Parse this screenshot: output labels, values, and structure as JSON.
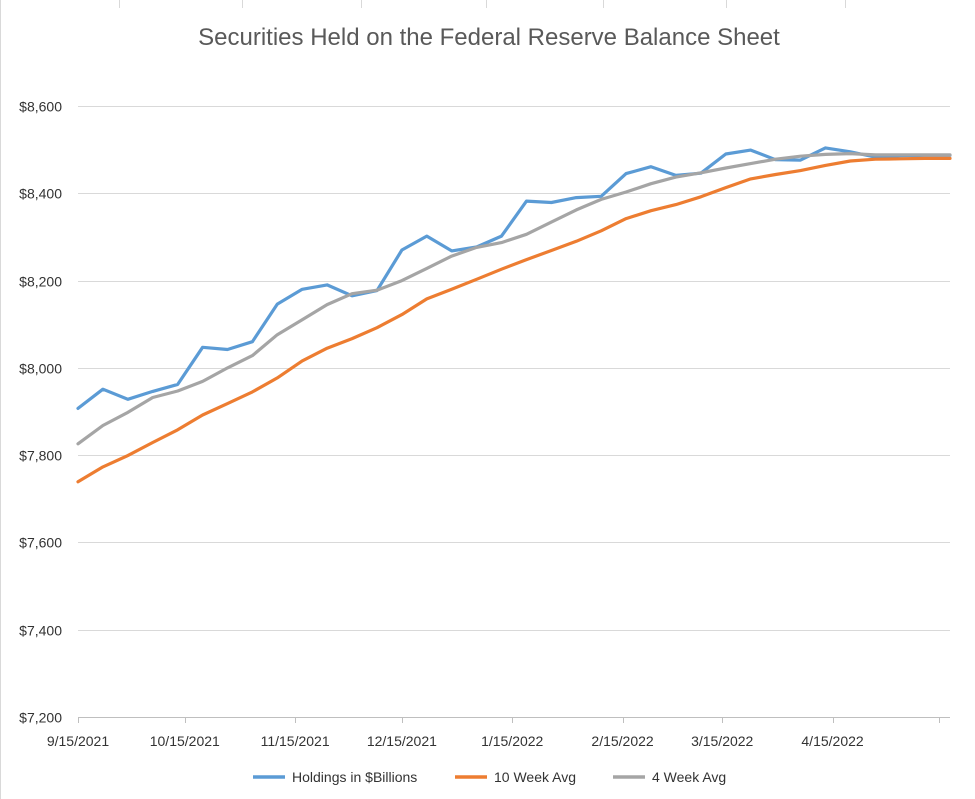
{
  "chart_data": {
    "type": "line",
    "title": "Securities Held on the Federal Reserve Balance Sheet",
    "xlabel": "",
    "ylabel": "",
    "ylim": [
      7200,
      8600
    ],
    "yticks": [
      "$7,200",
      "$7,400",
      "$7,600",
      "$7,800",
      "$8,000",
      "$8,200",
      "$8,400",
      "$8,600"
    ],
    "xlim": [
      "2021-09-15",
      "2022-05-18"
    ],
    "xticks": [
      {
        "date": "2021-09-15",
        "label": "9/15/2021"
      },
      {
        "date": "2021-10-15",
        "label": "10/15/2021"
      },
      {
        "date": "2021-11-15",
        "label": "11/15/2021"
      },
      {
        "date": "2021-12-15",
        "label": "12/15/2021"
      },
      {
        "date": "2022-01-15",
        "label": "1/15/2022"
      },
      {
        "date": "2022-02-15",
        "label": "2/15/2022"
      },
      {
        "date": "2022-03-15",
        "label": "3/15/2022"
      },
      {
        "date": "2022-04-15",
        "label": "4/15/2022"
      }
    ],
    "grid": true,
    "legend_position": "bottom",
    "x": [
      "2021-09-15",
      "2021-09-22",
      "2021-09-29",
      "2021-10-06",
      "2021-10-13",
      "2021-10-20",
      "2021-10-27",
      "2021-11-03",
      "2021-11-10",
      "2021-11-17",
      "2021-11-24",
      "2021-12-01",
      "2021-12-08",
      "2021-12-15",
      "2021-12-22",
      "2021-12-29",
      "2022-01-05",
      "2022-01-12",
      "2022-01-19",
      "2022-01-26",
      "2022-02-02",
      "2022-02-09",
      "2022-02-16",
      "2022-02-23",
      "2022-03-02",
      "2022-03-09",
      "2022-03-16",
      "2022-03-23",
      "2022-03-30",
      "2022-04-06",
      "2022-04-13",
      "2022-04-20",
      "2022-04-27",
      "2022-05-04",
      "2022-05-11",
      "2022-05-18"
    ],
    "series": [
      {
        "name": "Holdings in $Billions",
        "color": "#5B9BD5",
        "values": [
          7907,
          7951,
          7928,
          7946,
          7962,
          8047,
          8042,
          8060,
          8146,
          8180,
          8190,
          8165,
          8177,
          8270,
          8302,
          8268,
          8277,
          8302,
          8382,
          8379,
          8390,
          8393,
          8445,
          8461,
          8441,
          8446,
          8490,
          8499,
          8477,
          8476,
          8504,
          8495,
          8483,
          8486,
          8487,
          8487
        ]
      },
      {
        "name": "10 Week Avg",
        "color": "#ED7D31",
        "values": [
          7739,
          7773,
          7799,
          7829,
          7858,
          7892,
          7918,
          7945,
          7977,
          8016,
          8045,
          8067,
          8092,
          8122,
          8158,
          8180,
          8203,
          8226,
          8248,
          8269,
          8290,
          8314,
          8342,
          8360,
          8374,
          8392,
          8413,
          8433,
          8443,
          8452,
          8464,
          8474,
          8478,
          8479,
          8480,
          8480
        ]
      },
      {
        "name": "4 Week Avg",
        "color": "#A5A5A5",
        "values": [
          7826,
          7868,
          7898,
          7932,
          7947,
          7969,
          8000,
          8028,
          8076,
          8110,
          8145,
          8170,
          8178,
          8200,
          8228,
          8256,
          8276,
          8287,
          8306,
          8334,
          8362,
          8386,
          8403,
          8422,
          8437,
          8447,
          8458,
          8468,
          8478,
          8485,
          8489,
          8491,
          8488,
          8488,
          8488,
          8488
        ]
      }
    ]
  }
}
